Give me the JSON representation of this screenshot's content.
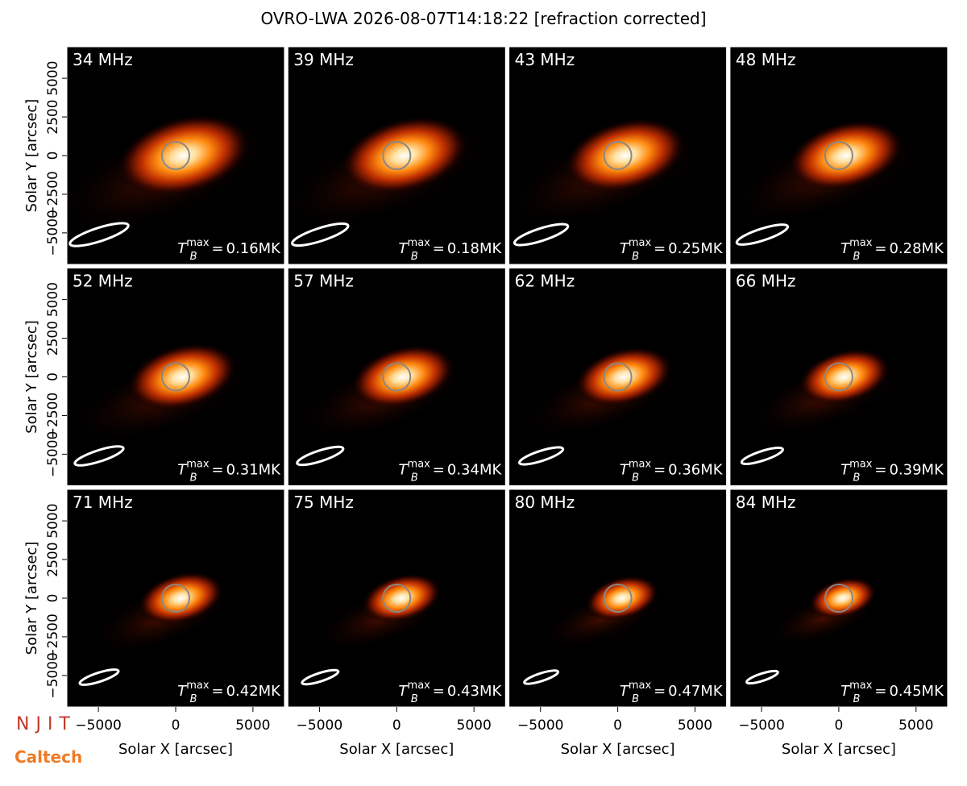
{
  "chart_data": {
    "type": "image-grid",
    "title": "OVRO-LWA 2026-08-07T14:18:22 [refraction corrected]",
    "xlabel": "Solar X [arcsec]",
    "ylabel": "Solar Y [arcsec]",
    "xlim": [
      -7040,
      7040
    ],
    "ylim": [
      -7040,
      7040
    ],
    "xticks": [
      {
        "value": -5000,
        "label": "−5000"
      },
      0,
      5000
    ],
    "yticks": [
      {
        "value": -5000,
        "label": "−5000"
      },
      {
        "value": -2500,
        "label": "−2500"
      },
      0,
      2500,
      5000
    ],
    "annotation_symbol": {
      "base": "T",
      "sub": "B",
      "sup": "max",
      "op": "="
    },
    "panels": [
      {
        "title": "34 MHz",
        "annotation": "0.16MK"
      },
      {
        "title": "39 MHz",
        "annotation": "0.18MK"
      },
      {
        "title": "43 MHz",
        "annotation": "0.25MK"
      },
      {
        "title": "48 MHz",
        "annotation": "0.28MK"
      },
      {
        "title": "52 MHz",
        "annotation": "0.31MK"
      },
      {
        "title": "57 MHz",
        "annotation": "0.34MK"
      },
      {
        "title": "62 MHz",
        "annotation": "0.36MK"
      },
      {
        "title": "66 MHz",
        "annotation": "0.39MK"
      },
      {
        "title": "71 MHz",
        "annotation": "0.42MK"
      },
      {
        "title": "75 MHz",
        "annotation": "0.43MK"
      },
      {
        "title": "80 MHz",
        "annotation": "0.47MK"
      },
      {
        "title": "84 MHz",
        "annotation": "0.45MK"
      }
    ],
    "logos": [
      "NJIT",
      "Caltech"
    ]
  }
}
